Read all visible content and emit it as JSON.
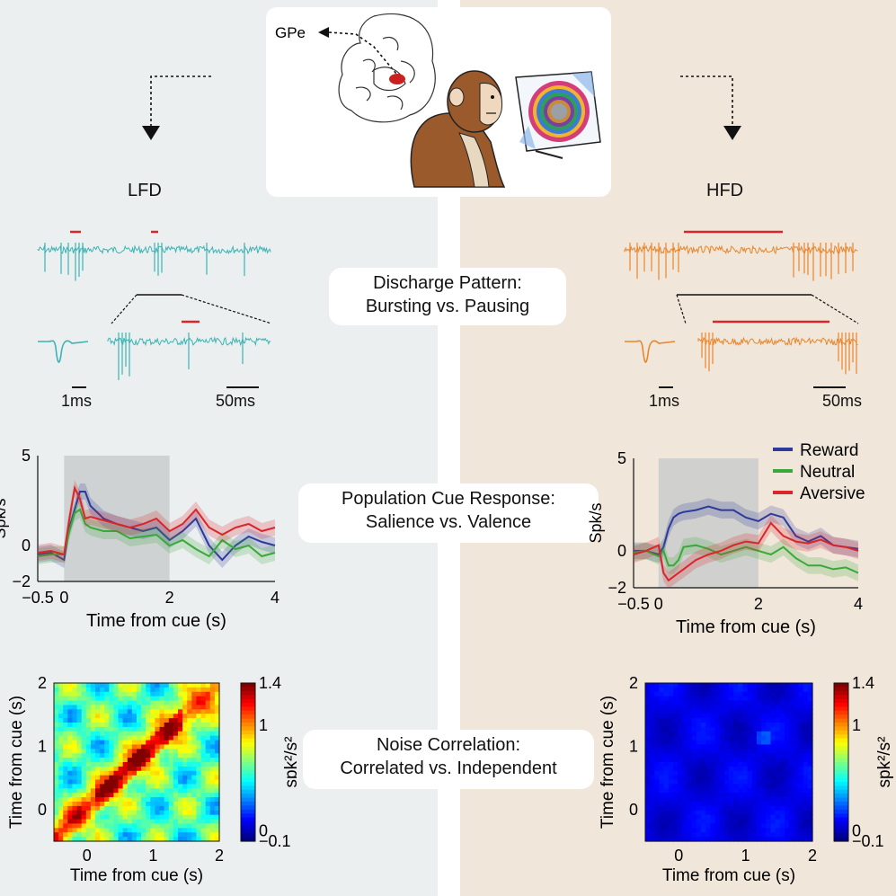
{
  "header": {
    "gpe_label": "GPe"
  },
  "left": {
    "title": "LFD",
    "scale_1": "1ms",
    "scale_2": "50ms"
  },
  "right": {
    "title": "HFD",
    "scale_1": "1ms",
    "scale_2": "50ms"
  },
  "pills": {
    "discharge_line1": "Discharge Pattern:",
    "discharge_line2": "Bursting vs. Pausing",
    "population_line1": "Population Cue Response:",
    "population_line2": "Salience vs. Valence",
    "noise_line1": "Noise Correlation:",
    "noise_line2": "Correlated vs. Independent"
  },
  "colors": {
    "lfd_trace": "#3bb3b5",
    "hfd_trace": "#e8862c",
    "pause_marker": "#d9262a",
    "reward": "#2e3a9a",
    "neutral": "#3aa83a",
    "aversive": "#d9262a",
    "cue_window": "#c8cacb"
  },
  "chart_data": [
    {
      "type": "line",
      "panel": "LFD population cue response",
      "xlabel": "Time from cue (s)",
      "ylabel": "Spk/s",
      "xlim": [
        -0.5,
        4
      ],
      "ylim": [
        -2,
        5
      ],
      "xticks": [
        "−0.5",
        "0",
        "2",
        "4"
      ],
      "yticks": [
        "5",
        "0",
        "−2"
      ],
      "cue_window": [
        0,
        2
      ],
      "legend": [],
      "x": [
        -0.5,
        -0.25,
        0,
        0.1,
        0.2,
        0.3,
        0.4,
        0.5,
        0.75,
        1,
        1.25,
        1.5,
        1.75,
        2,
        2.25,
        2.5,
        2.75,
        3,
        3.25,
        3.5,
        3.75,
        4
      ],
      "series": [
        {
          "color_key": "reward",
          "values": [
            -0.5,
            -0.4,
            -0.8,
            1.0,
            2.0,
            3.0,
            3.0,
            2.2,
            1.5,
            1.2,
            1.0,
            0.8,
            1.0,
            0.3,
            0.8,
            1.5,
            0.0,
            -0.8,
            0.0,
            0.5,
            0.2,
            0.0
          ]
        },
        {
          "color_key": "neutral",
          "values": [
            -0.6,
            -0.5,
            -0.5,
            0.8,
            1.8,
            2.0,
            1.2,
            1.0,
            0.8,
            0.8,
            0.4,
            0.5,
            0.6,
            0.0,
            0.3,
            -0.2,
            -0.6,
            0.3,
            -0.2,
            0.0,
            -0.6,
            -0.4
          ]
        },
        {
          "color_key": "aversive",
          "values": [
            -0.4,
            -0.3,
            -0.5,
            1.5,
            3.2,
            2.6,
            1.5,
            1.6,
            1.4,
            1.2,
            1.0,
            1.2,
            1.5,
            0.8,
            1.2,
            2.0,
            1.0,
            0.6,
            1.0,
            1.2,
            0.8,
            1.0
          ]
        }
      ]
    },
    {
      "type": "line",
      "panel": "HFD population cue response",
      "xlabel": "Time from cue (s)",
      "ylabel": "Spk/s",
      "xlim": [
        -0.5,
        4
      ],
      "ylim": [
        -2,
        5
      ],
      "xticks": [
        "−0.5",
        "0",
        "2",
        "4"
      ],
      "yticks": [
        "5",
        "0",
        "−2"
      ],
      "cue_window": [
        0,
        2
      ],
      "legend": [
        "Reward",
        "Neutral",
        "Aversive"
      ],
      "legend_position": "top-right",
      "x": [
        -0.5,
        -0.25,
        0,
        0.1,
        0.2,
        0.3,
        0.4,
        0.5,
        0.75,
        1,
        1.25,
        1.5,
        1.75,
        2,
        2.25,
        2.5,
        2.75,
        3,
        3.25,
        3.5,
        3.75,
        4
      ],
      "series": [
        {
          "color_key": "reward",
          "values": [
            0.0,
            0.0,
            -0.2,
            0.2,
            1.2,
            1.8,
            2.0,
            2.1,
            2.2,
            2.4,
            2.2,
            2.2,
            1.8,
            1.6,
            2.0,
            1.8,
            0.8,
            0.5,
            0.8,
            0.3,
            0.2,
            0.1
          ]
        },
        {
          "color_key": "neutral",
          "values": [
            -0.1,
            0.0,
            -0.3,
            0.0,
            -0.8,
            -0.8,
            -0.5,
            0.2,
            0.3,
            0.1,
            -0.2,
            0.0,
            0.2,
            0.0,
            -0.2,
            0.2,
            -0.4,
            -0.8,
            -0.8,
            -1.0,
            -0.9,
            -1.2
          ]
        },
        {
          "color_key": "aversive",
          "values": [
            -0.2,
            0.0,
            0.3,
            -1.2,
            -1.6,
            -1.4,
            -1.2,
            -1.0,
            -0.5,
            -0.2,
            0.0,
            0.3,
            0.5,
            0.4,
            1.5,
            0.8,
            0.5,
            0.4,
            0.6,
            0.3,
            0.2,
            0.0
          ]
        }
      ]
    },
    {
      "type": "heatmap",
      "panel": "LFD noise correlation",
      "xlabel": "Time from cue (s)",
      "ylabel": "Time from cue (s)",
      "xticks": [
        "0",
        "1",
        "2"
      ],
      "yticks": [
        "2",
        "1",
        "0"
      ],
      "colorbar_label": "spk²/s²",
      "colorbar_ticks": [
        "1.4",
        "1",
        "0",
        "−0.1"
      ],
      "clim": [
        -0.1,
        1.4
      ],
      "pattern": "strong diagonal (correlated)"
    },
    {
      "type": "heatmap",
      "panel": "HFD noise correlation",
      "xlabel": "Time from cue (s)",
      "ylabel": "Time from cue (s)",
      "xticks": [
        "0",
        "1",
        "2"
      ],
      "yticks": [
        "2",
        "1",
        "0"
      ],
      "colorbar_label": "spk²/s²",
      "colorbar_ticks": [
        "1.4",
        "1",
        "0",
        "−0.1"
      ],
      "clim": [
        -0.1,
        1.4
      ],
      "pattern": "uniform near zero (independent)"
    }
  ]
}
